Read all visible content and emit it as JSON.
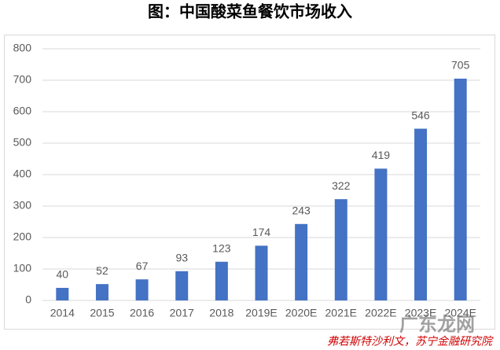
{
  "chart_data": {
    "type": "bar",
    "title": "图：中国酸菜鱼餐饮市场收入",
    "categories": [
      "2014",
      "2015",
      "2016",
      "2017",
      "2018",
      "2019E",
      "2020E",
      "2021E",
      "2022E",
      "2023E",
      "2024E"
    ],
    "values": [
      40,
      52,
      67,
      93,
      123,
      174,
      243,
      322,
      419,
      546,
      705
    ],
    "color": "#4472c4",
    "ylim": [
      0,
      800
    ],
    "yticks": [
      0,
      100,
      200,
      300,
      400,
      500,
      600,
      700,
      800
    ],
    "grid": true,
    "source": "弗若斯特沙利文，苏宁金融研究院",
    "watermark": "广东龙网"
  }
}
